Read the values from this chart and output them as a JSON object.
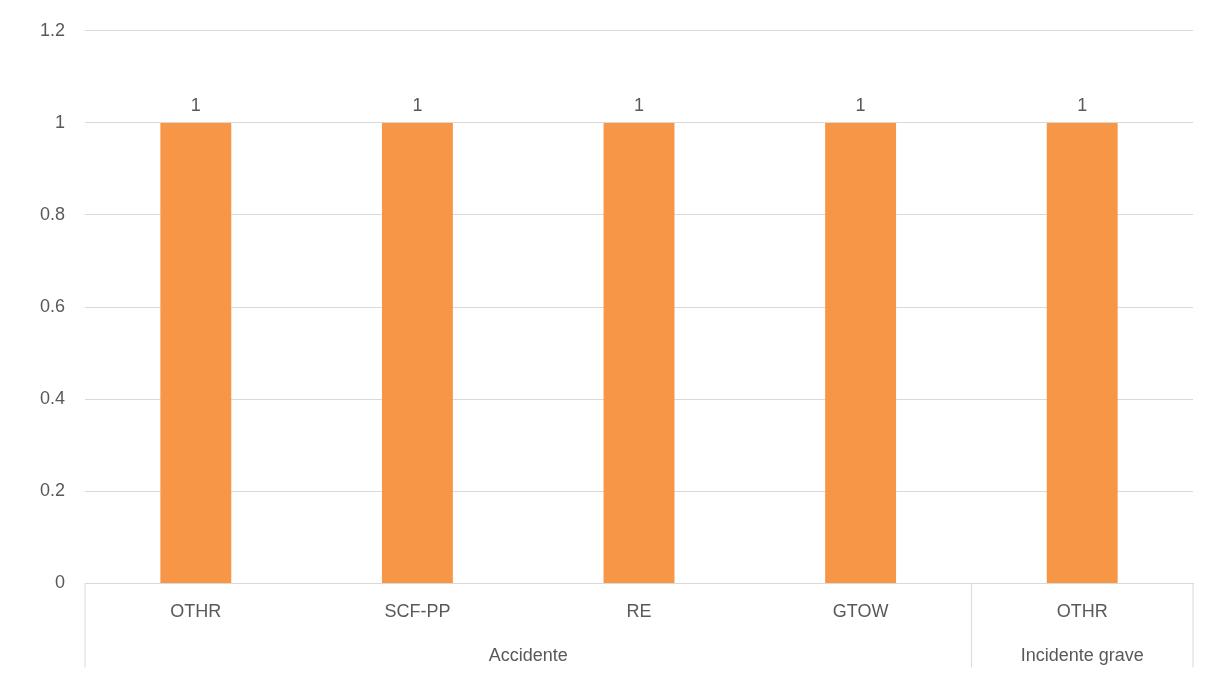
{
  "chart_data": {
    "type": "bar",
    "categories": [
      "OTHR",
      "SCF-PP",
      "RE",
      "GTOW",
      "OTHR"
    ],
    "values": [
      1,
      1,
      1,
      1,
      1
    ],
    "color": "#f79646",
    "ylim": [
      0,
      1.2
    ],
    "yticks": [
      0,
      0.2,
      0.4,
      0.6,
      0.8,
      1,
      1.2
    ],
    "grid": "y",
    "data_labels": true,
    "legend": false,
    "annotations": [
      "Accidente",
      "Incidente grave"
    ]
  }
}
